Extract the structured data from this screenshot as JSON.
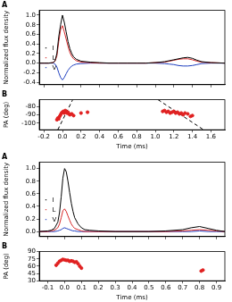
{
  "chart_data": [
    {
      "type": "line",
      "title": "A",
      "y_label": "Normalized flux density",
      "grid": false,
      "legend": "upper right",
      "tick_labels": "y",
      "x": [
        -0.25,
        -0.2,
        -0.15,
        -0.1,
        -0.08,
        -0.06,
        -0.04,
        -0.02,
        0.0,
        0.02,
        0.04,
        0.06,
        0.08,
        0.1,
        0.12,
        0.15,
        0.2,
        0.3,
        0.4,
        0.5,
        0.6,
        0.7,
        0.8,
        0.9,
        1.0,
        1.1,
        1.15,
        1.2,
        1.25,
        1.3,
        1.35,
        1.4,
        1.45,
        1.5,
        1.6,
        1.75
      ],
      "series": [
        {
          "name": "I",
          "color": "#000000",
          "line_style": "solid",
          "values": [
            0,
            0,
            0,
            0.01,
            0.05,
            0.2,
            0.55,
            0.8,
            1.0,
            0.85,
            0.65,
            0.45,
            0.3,
            0.2,
            0.13,
            0.08,
            0.04,
            0.02,
            0.01,
            0,
            0,
            0,
            0,
            0,
            0.01,
            0.03,
            0.05,
            0.07,
            0.09,
            0.11,
            0.12,
            0.1,
            0.06,
            0.03,
            0.01,
            0
          ]
        },
        {
          "name": "L",
          "color": "#d62728",
          "line_style": "solid",
          "values": [
            0,
            0,
            0,
            0.01,
            0.04,
            0.15,
            0.45,
            0.7,
            0.78,
            0.65,
            0.5,
            0.35,
            0.22,
            0.14,
            0.09,
            0.05,
            0.02,
            0.01,
            0,
            0,
            0,
            0,
            0,
            0,
            0.01,
            0.02,
            0.04,
            0.06,
            0.08,
            0.09,
            0.09,
            0.07,
            0.04,
            0.02,
            0.01,
            0
          ]
        },
        {
          "name": "V",
          "color": "#1f3fbf",
          "line_style": "solid",
          "values": [
            0,
            0,
            0,
            0,
            -0.02,
            -0.08,
            -0.2,
            -0.3,
            -0.35,
            -0.3,
            -0.22,
            -0.15,
            -0.1,
            -0.06,
            -0.04,
            -0.02,
            -0.01,
            0,
            0,
            0,
            0,
            0,
            0,
            0,
            0,
            -0.01,
            -0.02,
            -0.03,
            -0.05,
            -0.06,
            -0.06,
            -0.05,
            -0.03,
            -0.01,
            0,
            0
          ]
        }
      ],
      "xlim": [
        -0.25,
        1.75
      ],
      "xticks": [
        -0.2,
        {
          "value": 0,
          "label": "0.0"
        },
        0.2,
        0.4,
        0.6,
        0.8,
        {
          "value": 1,
          "label": "1.0"
        },
        1.2,
        1.4,
        1.6
      ],
      "ylim": [
        -0.45,
        1.1
      ],
      "yticks": [
        -0.4,
        -0.2,
        {
          "value": 0,
          "label": "0.0"
        },
        0.2,
        0.4,
        0.6,
        0.8,
        {
          "value": 1,
          "label": "1.0"
        }
      ]
    },
    {
      "type": "scatter",
      "title": "B",
      "x_label": "Time (ms)",
      "y_label": "PA (deg)",
      "grid": false,
      "series": [
        {
          "color": "#e02020",
          "marker": "circle",
          "x": [
            -0.06,
            -0.05,
            -0.04,
            -0.03,
            -0.02,
            -0.01,
            0.0,
            0.01,
            0.02,
            0.03,
            0.04,
            0.05,
            0.06,
            0.07,
            0.08,
            0.1,
            0.12,
            0.2,
            0.27
          ],
          "values": [
            -96,
            -94,
            -95,
            -92,
            -90,
            -88,
            -87,
            -86,
            -88,
            -85,
            -86,
            -88,
            -87,
            -89,
            -90,
            -89,
            -91,
            -88,
            -87
          ]
        },
        {
          "color": "#e02020",
          "marker": "circle",
          "x": [
            1.08,
            1.1,
            1.12,
            1.14,
            1.16,
            1.18,
            1.2,
            1.22,
            1.24,
            1.26,
            1.28,
            1.3,
            1.32,
            1.35,
            1.38,
            1.4
          ],
          "values": [
            -86,
            -85,
            -87,
            -86,
            -88,
            -87,
            -86,
            -88,
            -87,
            -89,
            -88,
            -90,
            -88,
            -89,
            -92,
            -91
          ]
        },
        {
          "type": "line",
          "color": "#000000",
          "line_style": "dashed",
          "x": [
            -0.05,
            0.11
          ],
          "values": [
            -108,
            -72
          ]
        },
        {
          "type": "line",
          "color": "#000000",
          "line_style": "dashed",
          "x": [
            1.03,
            1.52
          ],
          "values": [
            -72,
            -108
          ]
        }
      ],
      "xlim": [
        -0.25,
        1.75
      ],
      "xticks": [
        -0.2,
        {
          "value": 0,
          "label": "0.0"
        },
        0.2,
        0.4,
        0.6,
        0.8,
        {
          "value": 1,
          "label": "1.0"
        },
        1.2,
        1.4,
        1.6
      ],
      "ylim": [
        -108,
        -72
      ],
      "yticks": [
        -100,
        -90,
        -80
      ]
    },
    {
      "type": "line",
      "title": "A",
      "y_label": "Normalized flux density",
      "grid": false,
      "legend": "upper right",
      "tick_labels": "y",
      "x": [
        -0.15,
        -0.1,
        -0.08,
        -0.06,
        -0.04,
        -0.03,
        -0.02,
        -0.01,
        0.0,
        0.01,
        0.02,
        0.03,
        0.04,
        0.05,
        0.06,
        0.08,
        0.1,
        0.12,
        0.15,
        0.2,
        0.3,
        0.4,
        0.5,
        0.6,
        0.7,
        0.75,
        0.8,
        0.85,
        0.9,
        0.95
      ],
      "series": [
        {
          "name": "I",
          "color": "#000000",
          "line_style": "solid",
          "values": [
            0,
            0.01,
            0.02,
            0.05,
            0.15,
            0.3,
            0.55,
            0.85,
            1.0,
            0.95,
            0.8,
            0.62,
            0.45,
            0.32,
            0.22,
            0.12,
            0.06,
            0.03,
            0.02,
            0.01,
            0,
            0,
            0,
            0.01,
            0.03,
            0.06,
            0.08,
            0.05,
            0.02,
            0
          ]
        },
        {
          "name": "L",
          "color": "#d62728",
          "line_style": "solid",
          "values": [
            0,
            0,
            0.01,
            0.02,
            0.06,
            0.12,
            0.22,
            0.33,
            0.36,
            0.32,
            0.25,
            0.18,
            0.12,
            0.08,
            0.05,
            0.03,
            0.01,
            0,
            0,
            0,
            0,
            0,
            0,
            0,
            0.01,
            0.02,
            0.03,
            0.02,
            0.01,
            0
          ]
        },
        {
          "name": "V",
          "color": "#1f3fbf",
          "line_style": "solid",
          "values": [
            0,
            0,
            0,
            0,
            0.01,
            0.02,
            0.03,
            0.05,
            0.06,
            0.05,
            0.04,
            0.03,
            0.02,
            0.01,
            0.01,
            0,
            0,
            0,
            0,
            0,
            0,
            0,
            0,
            0,
            0,
            0,
            0.01,
            0,
            0,
            0
          ]
        }
      ],
      "xlim": [
        -0.15,
        0.95
      ],
      "xticks": [
        -0.1,
        {
          "value": 0,
          "label": "0.0"
        },
        0.1,
        0.2,
        0.3,
        0.4,
        0.5,
        0.6,
        0.7,
        0.8,
        0.9
      ],
      "ylim": [
        -0.08,
        1.1
      ],
      "yticks": [
        {
          "value": 0,
          "label": "0.0"
        },
        0.2,
        0.4,
        0.6,
        0.8,
        {
          "value": 1,
          "label": "1.0"
        }
      ]
    },
    {
      "type": "scatter",
      "title": "B",
      "x_label": "Time (ms)",
      "y_label": "PA (deg)",
      "grid": false,
      "series": [
        {
          "color": "#e02020",
          "marker": "circle",
          "x": [
            -0.05,
            -0.04,
            -0.03,
            -0.02,
            -0.01,
            0.0,
            0.01,
            0.02,
            0.03,
            0.04,
            0.05,
            0.06,
            0.07,
            0.08,
            0.09,
            0.1
          ],
          "values": [
            62,
            66,
            70,
            72,
            74,
            73,
            72,
            72,
            70,
            71,
            70,
            68,
            69,
            65,
            60,
            56
          ]
        },
        {
          "color": "#e02020",
          "marker": "circle",
          "x": [
            0.81,
            0.82
          ],
          "values": [
            50,
            52
          ]
        }
      ],
      "xlim": [
        -0.15,
        0.95
      ],
      "xticks": [
        -0.1,
        {
          "value": 0,
          "label": "0.0"
        },
        0.1,
        0.2,
        0.3,
        0.4,
        0.5,
        0.6,
        0.7,
        0.8,
        0.9
      ],
      "ylim": [
        30,
        90
      ],
      "yticks": [
        30,
        45,
        60,
        75,
        90
      ]
    }
  ]
}
